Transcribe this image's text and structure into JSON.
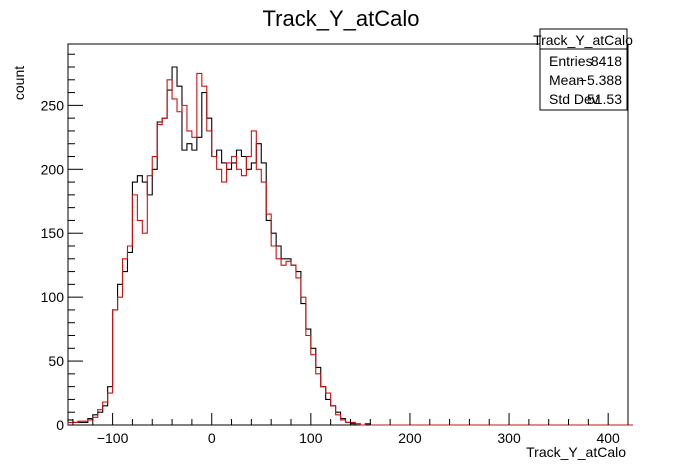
{
  "chart_data": {
    "type": "histogram",
    "title": "Track_Y_atCalo",
    "xlabel": "Track_Y_atCalo",
    "ylabel": "count",
    "xlim": [
      -145,
      420
    ],
    "ylim": [
      0,
      298
    ],
    "grid": false,
    "bin_width": 5,
    "x_start": -145,
    "x_ticks": [
      -100,
      0,
      100,
      200,
      300,
      400
    ],
    "y_ticks": [
      0,
      50,
      100,
      150,
      200,
      250
    ],
    "stats_box": {
      "title": "Track_Y_atCalo",
      "placement": "top-right",
      "rows": [
        {
          "label": "Entries",
          "value": "8418"
        },
        {
          "label": "Mean",
          "value": "−5.388"
        },
        {
          "label": "Std Dev",
          "value": "51.53"
        }
      ]
    },
    "series": [
      {
        "color": "#000000",
        "values": [
          4,
          2,
          2,
          2,
          5,
          8,
          10,
          15,
          30,
          90,
          110,
          120,
          135,
          190,
          195,
          190,
          180,
          200,
          237,
          240,
          262,
          280,
          265,
          215,
          220,
          215,
          225,
          260,
          240,
          210,
          215,
          205,
          200,
          205,
          215,
          210,
          200,
          205,
          220,
          205,
          160,
          150,
          140,
          130,
          130,
          125,
          120,
          95,
          75,
          60,
          45,
          30,
          20,
          15,
          10,
          5,
          2,
          1,
          0,
          0,
          1,
          0,
          0,
          0,
          0,
          0,
          0,
          0,
          0,
          0,
          0,
          0,
          0,
          0,
          0,
          0,
          0,
          0,
          0,
          0,
          0,
          0,
          0,
          0,
          0,
          0,
          0,
          0,
          0,
          0,
          0,
          0,
          0,
          0,
          0,
          0,
          0,
          0,
          0,
          0,
          0,
          0,
          0,
          0,
          0,
          0,
          0,
          0,
          0,
          0,
          0,
          0,
          0,
          0
        ]
      },
      {
        "color": "#cc1111",
        "values": [
          2,
          2,
          3,
          3,
          4,
          6,
          12,
          18,
          25,
          90,
          100,
          130,
          140,
          180,
          160,
          150,
          195,
          210,
          235,
          240,
          270,
          255,
          245,
          250,
          230,
          225,
          275,
          265,
          230,
          210,
          200,
          190,
          205,
          210,
          200,
          195,
          210,
          230,
          200,
          190,
          165,
          140,
          130,
          125,
          128,
          125,
          115,
          100,
          70,
          55,
          40,
          30,
          25,
          15,
          8,
          4,
          2,
          2,
          1,
          0,
          1,
          0,
          0,
          0,
          0,
          0,
          0,
          0,
          0,
          0,
          0,
          0,
          0,
          0,
          0,
          0,
          0,
          0,
          0,
          0,
          0,
          0,
          0,
          0,
          0,
          0,
          0,
          0,
          0,
          0,
          0,
          0,
          0,
          0,
          0,
          0,
          0,
          0,
          0,
          0,
          0,
          0,
          0,
          0,
          0,
          0,
          0,
          0,
          0,
          0,
          0,
          0,
          0,
          0
        ]
      }
    ]
  }
}
